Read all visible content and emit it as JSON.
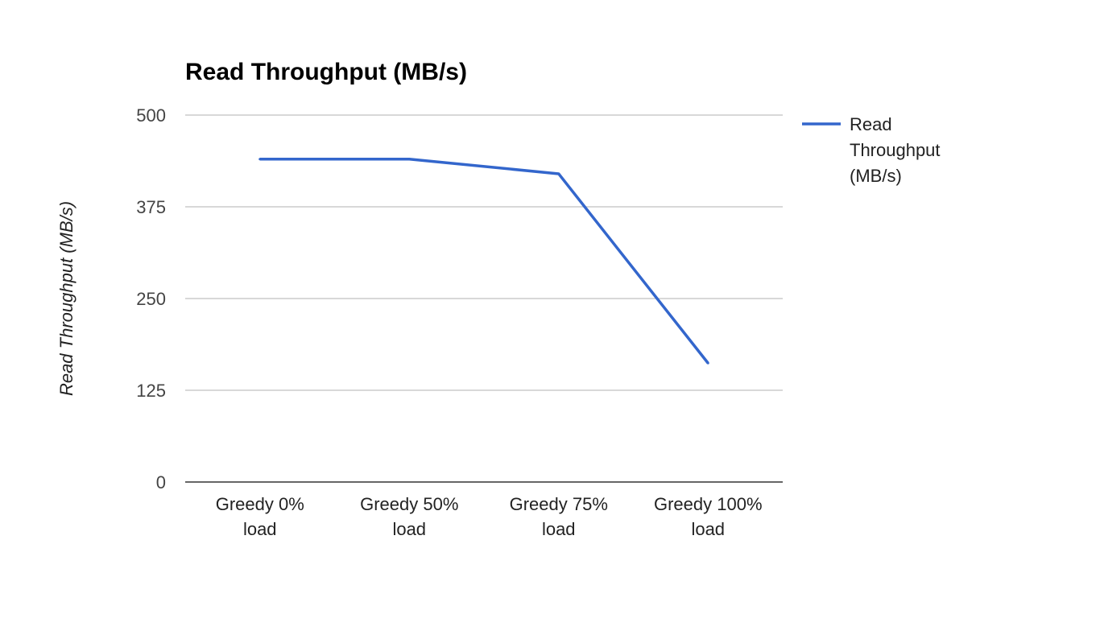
{
  "chart_data": {
    "type": "line",
    "title": "Read Throughput (MB/s)",
    "xlabel": "",
    "ylabel": "Read Throughput (MB/s)",
    "categories": [
      [
        "Greedy 0%",
        "load"
      ],
      [
        "Greedy 50%",
        "load"
      ],
      [
        "Greedy 75%",
        "load"
      ],
      [
        "Greedy 100%",
        "load"
      ]
    ],
    "series": [
      {
        "name": [
          "Read",
          "Throughput",
          "(MB/s)"
        ],
        "values": [
          440,
          440,
          420,
          162
        ],
        "color": "#3366cc"
      }
    ],
    "ylim": [
      0,
      500
    ],
    "yticks": [
      0,
      125,
      250,
      375,
      500
    ],
    "grid": true,
    "legend_position": "right"
  }
}
